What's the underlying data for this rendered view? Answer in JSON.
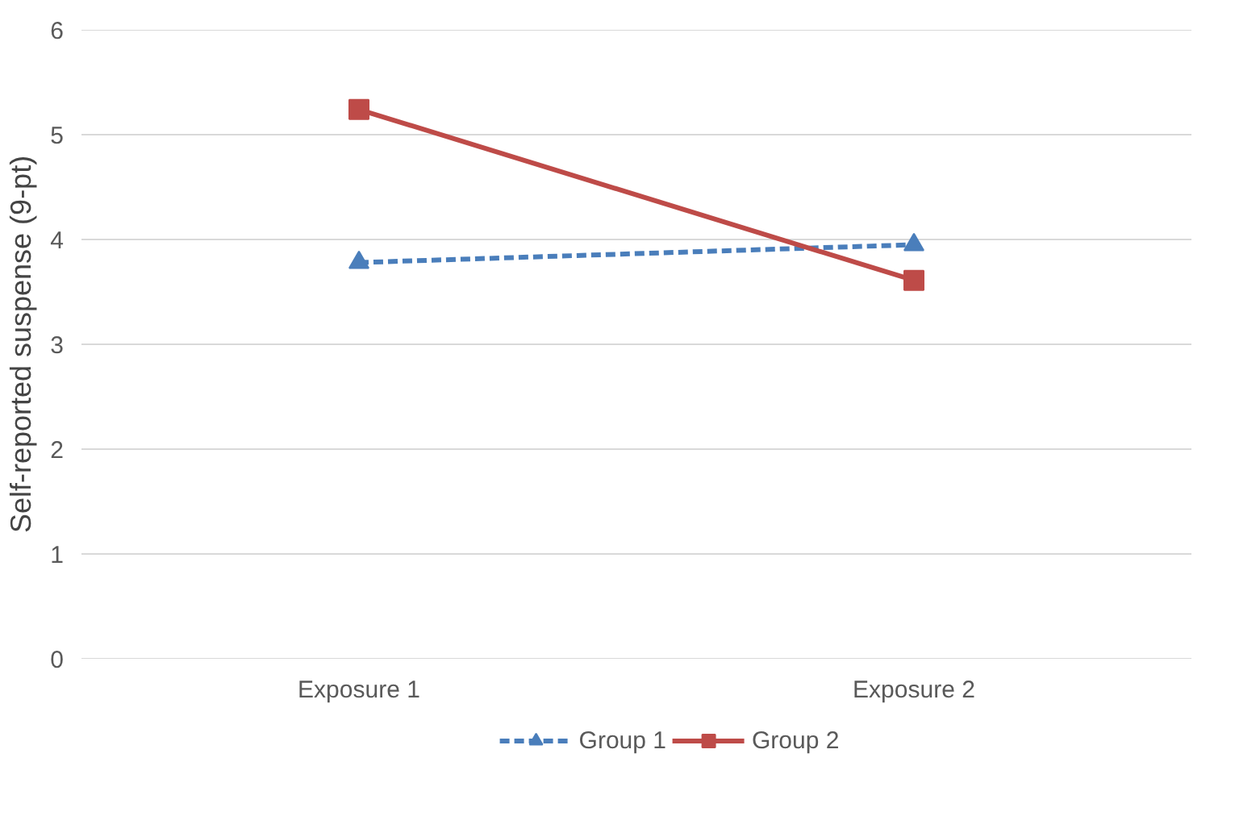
{
  "chart_data": {
    "type": "line",
    "ylabel": "Self-reported suspense (9-pt)",
    "categories": [
      "Exposure 1",
      "Exposure 2"
    ],
    "series": [
      {
        "name": "Group 1",
        "color": "#4a7ebb",
        "values": [
          3.78,
          3.95
        ],
        "marker": "triangle",
        "line_style": "dashed"
      },
      {
        "name": "Group 2",
        "color": "#be4b48",
        "values": [
          5.24,
          3.61
        ],
        "marker": "square",
        "line_style": "solid"
      }
    ],
    "ylim": [
      0,
      6
    ],
    "yticks": [
      0,
      1,
      2,
      3,
      4,
      5,
      6
    ],
    "grid": "y",
    "legend": "bottom"
  }
}
